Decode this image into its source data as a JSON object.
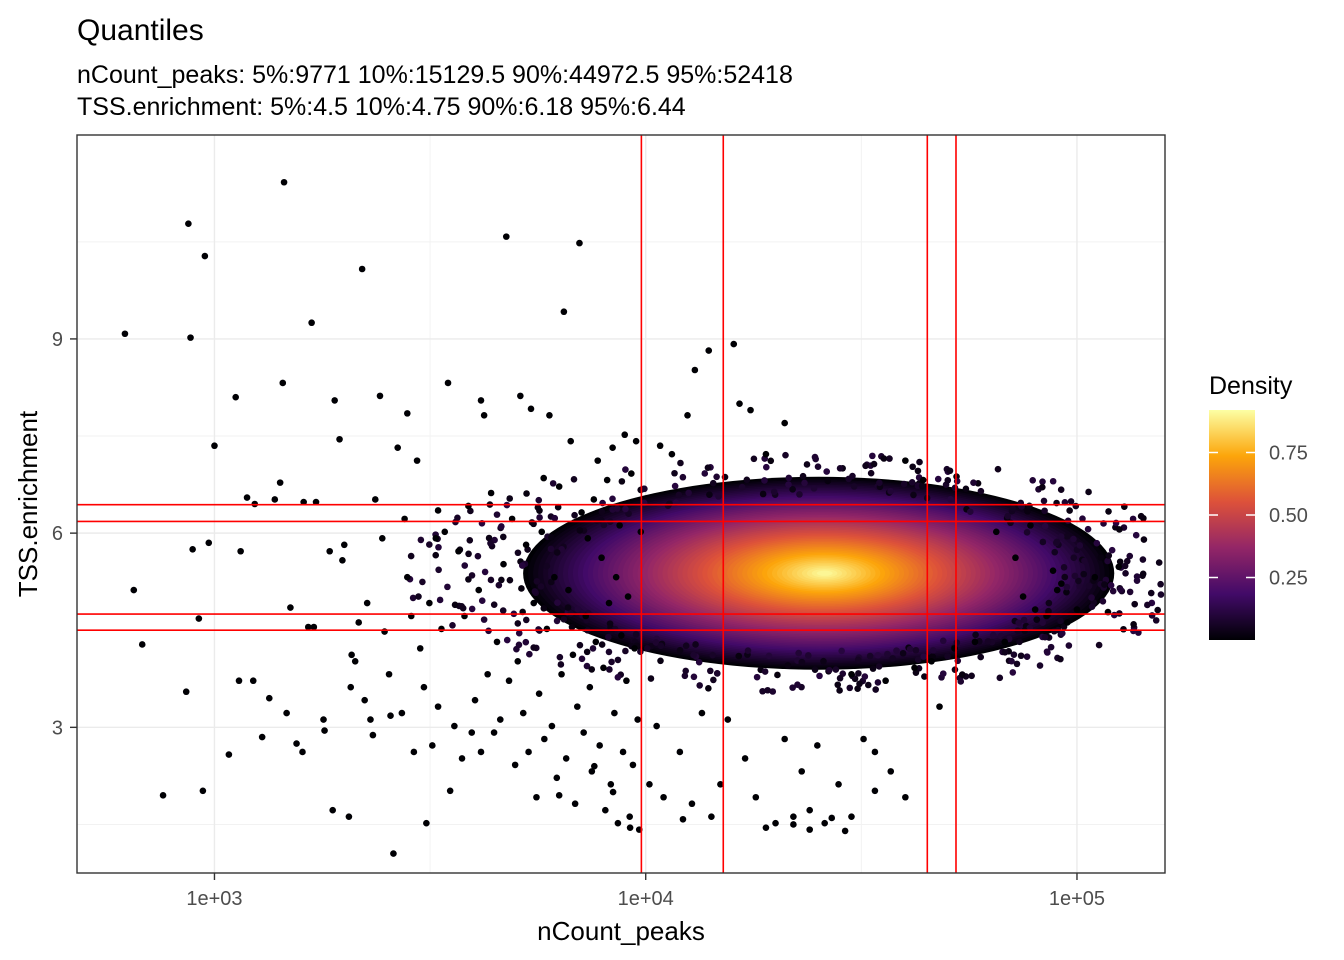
{
  "chart_data": {
    "type": "scatter",
    "title": "Quantiles",
    "subtitle_lines": [
      "nCount_peaks: 5%:9771 10%:15129.5 90%:44972.5 95%:52418",
      "TSS.enrichment: 5%:4.5 10%:4.75 90%:6.18 95%:6.44"
    ],
    "xlabel": "nCount_peaks",
    "ylabel": "TSS.enrichment",
    "x_scale": "log10",
    "xlim": [
      480,
      160000
    ],
    "ylim": [
      0.75,
      12.15
    ],
    "x_ticks": [
      {
        "value": 1000,
        "label": "1e+03"
      },
      {
        "value": 10000,
        "label": "1e+04"
      },
      {
        "value": 100000,
        "label": "1e+05"
      }
    ],
    "y_ticks": [
      {
        "value": 3,
        "label": "3"
      },
      {
        "value": 6,
        "label": "6"
      },
      {
        "value": 9,
        "label": "9"
      }
    ],
    "grid": true,
    "quantile_lines": {
      "color": "#ff0000",
      "x": [
        9771,
        15129.5,
        44972.5,
        52418
      ],
      "y": [
        4.5,
        4.75,
        6.18,
        6.44
      ]
    },
    "density_core": {
      "center": [
        26000,
        5.38
      ],
      "spread_log10_x": 0.23,
      "spread_y": 0.5
    },
    "legend": {
      "title": "Density",
      "position": "right",
      "ticks": [
        {
          "value": 0.25,
          "label": "0.25"
        },
        {
          "value": 0.5,
          "label": "0.50"
        },
        {
          "value": 0.75,
          "label": "0.75"
        }
      ],
      "range": [
        0.0,
        0.92
      ],
      "colors": [
        "#000004",
        "#420a68",
        "#932667",
        "#dd513a",
        "#fca50a",
        "#fcffa4"
      ]
    },
    "outlier_points": [
      [
        620,
        9.08
      ],
      [
        650,
        5.12
      ],
      [
        680,
        4.28
      ],
      [
        760,
        1.95
      ],
      [
        860,
        3.55
      ],
      [
        870,
        10.78
      ],
      [
        880,
        9.02
      ],
      [
        890,
        5.75
      ],
      [
        920,
        4.68
      ],
      [
        940,
        2.02
      ],
      [
        950,
        10.28
      ],
      [
        970,
        5.85
      ],
      [
        1080,
        2.58
      ],
      [
        1140,
        3.72
      ],
      [
        1150,
        5.72
      ],
      [
        1190,
        6.55
      ],
      [
        1230,
        3.72
      ],
      [
        1240,
        6.45
      ],
      [
        1290,
        2.85
      ],
      [
        1340,
        3.45
      ],
      [
        1380,
        6.52
      ],
      [
        1420,
        6.78
      ],
      [
        1440,
        8.32
      ],
      [
        1450,
        11.42
      ],
      [
        1470,
        3.22
      ],
      [
        1500,
        4.85
      ],
      [
        1550,
        2.75
      ],
      [
        1600,
        2.62
      ],
      [
        1610,
        6.48
      ],
      [
        1650,
        4.55
      ],
      [
        1680,
        9.25
      ],
      [
        1700,
        4.55
      ],
      [
        1720,
        6.48
      ],
      [
        1790,
        3.12
      ],
      [
        1800,
        2.95
      ],
      [
        1850,
        5.72
      ],
      [
        1880,
        1.72
      ],
      [
        1900,
        8.05
      ],
      [
        1950,
        7.45
      ],
      [
        1980,
        5.58
      ],
      [
        2000,
        5.82
      ],
      [
        2050,
        1.62
      ],
      [
        2070,
        3.62
      ],
      [
        2080,
        4.12
      ],
      [
        2120,
        4.02
      ],
      [
        2160,
        4.62
      ],
      [
        2200,
        10.08
      ],
      [
        2230,
        3.42
      ],
      [
        2260,
        4.92
      ],
      [
        2300,
        3.12
      ],
      [
        2330,
        2.88
      ],
      [
        2360,
        6.52
      ],
      [
        2420,
        8.12
      ],
      [
        2450,
        5.92
      ],
      [
        2480,
        4.48
      ],
      [
        2540,
        3.82
      ],
      [
        2560,
        3.18
      ],
      [
        2600,
        1.05
      ],
      [
        2660,
        7.32
      ],
      [
        2720,
        3.22
      ],
      [
        2760,
        6.22
      ],
      [
        2800,
        5.32
      ],
      [
        2860,
        4.72
      ],
      [
        2900,
        2.62
      ],
      [
        2950,
        7.12
      ],
      [
        3000,
        4.22
      ],
      [
        3060,
        3.62
      ],
      [
        3100,
        1.52
      ],
      [
        3150,
        4.92
      ],
      [
        3200,
        2.72
      ],
      [
        3260,
        5.92
      ],
      [
        3300,
        3.32
      ],
      [
        3360,
        4.52
      ],
      [
        3420,
        6.02
      ],
      [
        3480,
        8.32
      ],
      [
        3520,
        2.02
      ],
      [
        3600,
        3.02
      ],
      [
        3680,
        5.72
      ],
      [
        3750,
        2.52
      ],
      [
        3800,
        4.72
      ],
      [
        3880,
        6.42
      ],
      [
        3950,
        2.92
      ],
      [
        4020,
        3.42
      ],
      [
        4100,
        5.12
      ],
      [
        4150,
        2.62
      ],
      [
        4220,
        7.82
      ],
      [
        4300,
        3.82
      ],
      [
        4380,
        6.62
      ],
      [
        4450,
        2.92
      ],
      [
        4520,
        4.32
      ],
      [
        4600,
        3.12
      ],
      [
        4680,
        5.52
      ],
      [
        4750,
        10.58
      ],
      [
        4820,
        3.72
      ],
      [
        4900,
        6.22
      ],
      [
        4980,
        2.42
      ],
      [
        5050,
        4.02
      ],
      [
        5120,
        8.12
      ],
      [
        5200,
        3.22
      ],
      [
        5280,
        5.82
      ],
      [
        5350,
        2.62
      ],
      [
        5420,
        7.92
      ],
      [
        5500,
        4.92
      ],
      [
        5580,
        1.92
      ],
      [
        5660,
        3.52
      ],
      [
        5740,
        6.02
      ],
      [
        5820,
        2.82
      ],
      [
        5900,
        4.52
      ],
      [
        5980,
        7.82
      ],
      [
        6060,
        3.02
      ],
      [
        6140,
        5.32
      ],
      [
        6220,
        2.22
      ],
      [
        6300,
        6.72
      ],
      [
        6380,
        3.82
      ],
      [
        6460,
        9.42
      ],
      [
        6540,
        2.52
      ],
      [
        6620,
        5.12
      ],
      [
        6700,
        7.42
      ],
      [
        6780,
        4.12
      ],
      [
        6860,
        1.82
      ],
      [
        6940,
        3.32
      ],
      [
        7020,
        10.48
      ],
      [
        7100,
        6.32
      ],
      [
        7180,
        2.92
      ],
      [
        7260,
        4.72
      ],
      [
        7340,
        5.92
      ],
      [
        7420,
        3.62
      ],
      [
        7500,
        2.32
      ],
      [
        7580,
        6.52
      ],
      [
        7660,
        4.32
      ],
      [
        7740,
        7.12
      ],
      [
        7820,
        2.72
      ],
      [
        7900,
        5.62
      ],
      [
        7980,
        3.92
      ],
      [
        8060,
        1.72
      ],
      [
        8140,
        6.82
      ],
      [
        8220,
        4.92
      ],
      [
        8300,
        2.12
      ],
      [
        8380,
        7.32
      ],
      [
        8460,
        3.22
      ],
      [
        8540,
        5.32
      ],
      [
        8620,
        1.52
      ],
      [
        8700,
        6.12
      ],
      [
        8780,
        4.42
      ],
      [
        8860,
        2.62
      ],
      [
        8940,
        7.52
      ],
      [
        9020,
        3.72
      ],
      [
        9100,
        5.02
      ],
      [
        9180,
        1.62
      ],
      [
        9260,
        6.92
      ],
      [
        9340,
        2.42
      ],
      [
        9420,
        4.22
      ],
      [
        9500,
        7.42
      ],
      [
        9580,
        3.12
      ],
      [
        9660,
        1.42
      ],
      [
        9740,
        6.02
      ],
      [
        10200,
        2.12
      ],
      [
        10600,
        3.02
      ],
      [
        11000,
        1.92
      ],
      [
        12000,
        2.62
      ],
      [
        12800,
        1.82
      ],
      [
        13500,
        3.22
      ],
      [
        14200,
        1.62
      ],
      [
        14900,
        2.12
      ],
      [
        15500,
        3.12
      ],
      [
        16000,
        8.92
      ],
      [
        17000,
        2.52
      ],
      [
        18000,
        1.92
      ],
      [
        19000,
        7.22
      ],
      [
        20000,
        1.52
      ],
      [
        21000,
        2.82
      ],
      [
        22000,
        1.62
      ],
      [
        23000,
        2.32
      ],
      [
        24000,
        1.42
      ],
      [
        25000,
        2.72
      ],
      [
        26000,
        1.52
      ],
      [
        28000,
        2.12
      ],
      [
        30000,
        1.62
      ],
      [
        32000,
        2.82
      ],
      [
        34000,
        2.02
      ],
      [
        37000,
        2.32
      ],
      [
        40000,
        1.92
      ],
      [
        13000,
        8.52
      ],
      [
        14000,
        8.82
      ],
      [
        11500,
        7.22
      ],
      [
        12500,
        7.82
      ],
      [
        1000,
        7.35
      ],
      [
        2800,
        7.85
      ],
      [
        5800,
        6.85
      ],
      [
        3300,
        6.35
      ],
      [
        1120,
        8.1
      ],
      [
        4150,
        8.05
      ],
      [
        16500,
        8.0
      ],
      [
        17500,
        7.9
      ],
      [
        21000,
        7.7
      ],
      [
        10800,
        7.35
      ],
      [
        24000,
        1.72
      ],
      [
        27000,
        1.6
      ],
      [
        29000,
        1.4
      ],
      [
        22000,
        1.5
      ],
      [
        19000,
        1.45
      ],
      [
        12200,
        1.58
      ],
      [
        9200,
        1.45
      ],
      [
        8400,
        2.0
      ],
      [
        7600,
        2.4
      ],
      [
        6300,
        1.95
      ],
      [
        75000,
        5.02
      ],
      [
        80000,
        4.82
      ],
      [
        85000,
        4.72
      ],
      [
        90000,
        5.12
      ],
      [
        95000,
        4.62
      ],
      [
        100000,
        4.82
      ],
      [
        110000,
        5.32
      ],
      [
        118000,
        4.78
      ],
      [
        125000,
        5.48
      ],
      [
        78000,
        6.12
      ],
      [
        72000,
        5.62
      ],
      [
        68000,
        4.32
      ],
      [
        65000,
        6.02
      ],
      [
        88000,
        5.42
      ],
      [
        92000,
        5.22
      ],
      [
        46000,
        4.02
      ],
      [
        52000,
        4.22
      ],
      [
        58000,
        4.32
      ],
      [
        42000,
        3.92
      ],
      [
        44000,
        6.82
      ],
      [
        40000,
        7.12
      ],
      [
        36000,
        3.72
      ],
      [
        30000,
        3.82
      ],
      [
        34000,
        2.62
      ],
      [
        48000,
        3.32
      ]
    ]
  }
}
